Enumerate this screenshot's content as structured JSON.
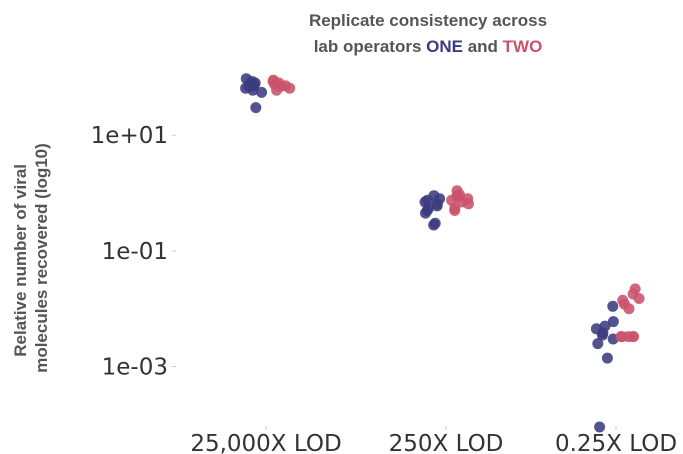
{
  "chart_data": {
    "type": "scatter",
    "title_line1": "Replicate consistency across",
    "title_line2_prefix": "lab operators ",
    "title_one": "ONE",
    "title_and": " and ",
    "title_two": "TWO",
    "ylabel_line1": "Relative number of viral",
    "ylabel_line2": "molecules recovered (log10)",
    "y_scale": "log10",
    "ylim": [
      8e-05,
      200
    ],
    "y_ticks": [
      {
        "value": 10,
        "label": "1e+01"
      },
      {
        "value": 0.1,
        "label": "1e-01"
      },
      {
        "value": 0.001,
        "label": "1e-03"
      }
    ],
    "categories": [
      "25,000X LOD",
      "250X LOD",
      "0.25X LOD"
    ],
    "colors": {
      "ONE": "#3b3b80",
      "TWO": "#c9536b"
    },
    "series": [
      {
        "name": "ONE",
        "values": [
          [
            75,
            80,
            95,
            70,
            60,
            72,
            65,
            55,
            30,
            85,
            78
          ],
          [
            0.8,
            0.6,
            0.45,
            0.9,
            0.55,
            0.65,
            0.5,
            0.3,
            0.28,
            0.75,
            0.7
          ],
          [
            0.011,
            0.006,
            0.0045,
            0.0038,
            0.003,
            0.0025,
            0.0035,
            0.005,
            0.0014,
            9e-05
          ]
        ]
      },
      {
        "name": "TWO",
        "values": [
          [
            90,
            65,
            80,
            75,
            70,
            60,
            85,
            72
          ],
          [
            1.1,
            0.9,
            0.75,
            0.65,
            0.55,
            0.8,
            0.95,
            0.5,
            0.7,
            0.85
          ],
          [
            0.022,
            0.018,
            0.014,
            0.012,
            0.01,
            0.0033,
            0.0033,
            0.0033,
            0.0033,
            0.0033,
            0.015
          ]
        ]
      }
    ]
  }
}
